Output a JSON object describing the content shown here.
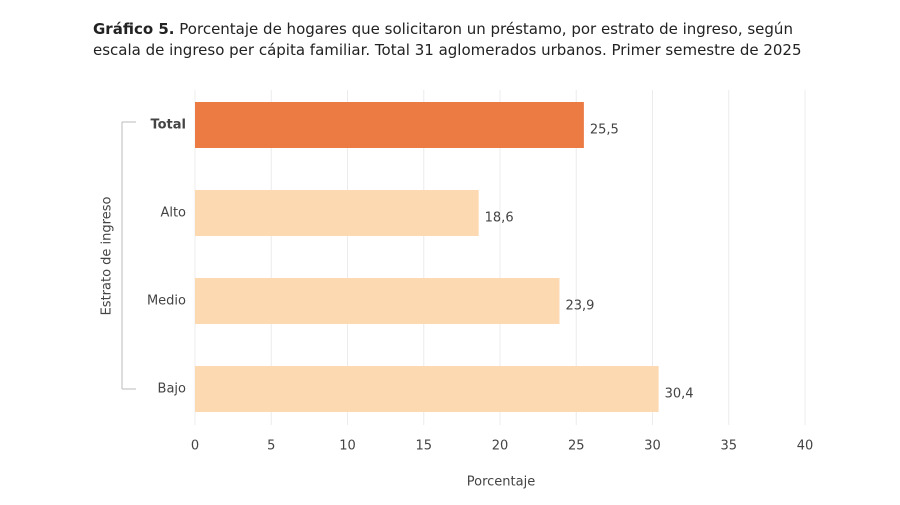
{
  "chart_data": {
    "type": "barh",
    "title_label": "Gráfico 5.",
    "title": "Porcentaje de hogares que solicitaron un préstamo, por estrato de ingreso, según escala de ingreso per cápita familiar. Total 31 aglomerados urbanos. Primer semestre de 2025",
    "categories": [
      "Total",
      "Alto",
      "Medio",
      "Bajo"
    ],
    "values": [
      25.5,
      18.6,
      23.9,
      30.4
    ],
    "value_labels": [
      "25,5",
      "18,6",
      "23,9",
      "30,4"
    ],
    "colors": [
      "#ec7a43",
      "#fdd9b2",
      "#fdd9b2",
      "#fdd9b2"
    ],
    "xlabel": "Porcentaje",
    "ylabel": "Estrato de ingreso",
    "xlim": [
      0,
      40
    ],
    "xticks": [
      0,
      5,
      10,
      15,
      20,
      25,
      30,
      35,
      40
    ],
    "grid": true
  }
}
